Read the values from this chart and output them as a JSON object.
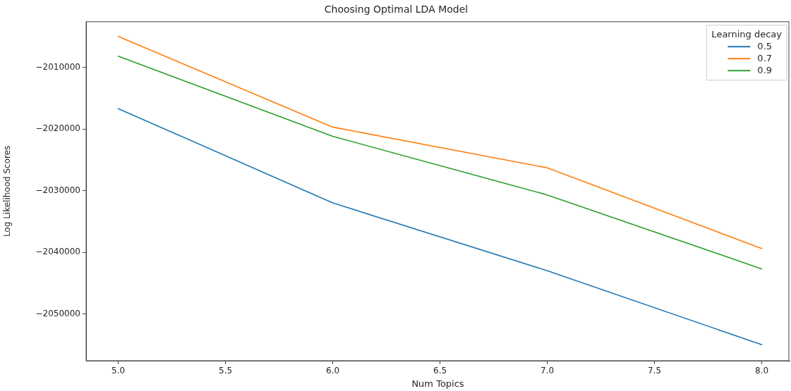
{
  "chart_data": {
    "type": "line",
    "title": "Choosing Optimal LDA Model",
    "xlabel": "Num Topics",
    "ylabel": "Log Likelihood Scores",
    "legend_title": "Learning decay",
    "x": [
      5.0,
      6.0,
      7.0,
      8.0
    ],
    "series": [
      {
        "name": "0.5",
        "color": "#1f77b4",
        "values": [
          -2016700,
          -2032000,
          -2043000,
          -2055000
        ]
      },
      {
        "name": "0.7",
        "color": "#ff7f0e",
        "values": [
          -2005000,
          -2019700,
          -2026300,
          -2039400
        ]
      },
      {
        "name": "0.9",
        "color": "#2ca02c",
        "values": [
          -2008200,
          -2021200,
          -2030700,
          -2042700
        ]
      }
    ],
    "xlim": [
      4.85,
      8.13
    ],
    "ylim": [
      -2057600,
      -2002600
    ],
    "xticks": [
      {
        "value": 5.0,
        "label": "5.0"
      },
      {
        "value": 5.5,
        "label": "5.5"
      },
      {
        "value": 6.0,
        "label": "6.0"
      },
      {
        "value": 6.5,
        "label": "6.5"
      },
      {
        "value": 7.0,
        "label": "7.0"
      },
      {
        "value": 7.5,
        "label": "7.5"
      },
      {
        "value": 8.0,
        "label": "8.0"
      }
    ],
    "yticks": [
      {
        "value": -2050000,
        "label": "−2050000"
      },
      {
        "value": -2040000,
        "label": "−2040000"
      },
      {
        "value": -2030000,
        "label": "−2030000"
      },
      {
        "value": -2020000,
        "label": "−2020000"
      },
      {
        "value": -2010000,
        "label": "−2010000"
      }
    ],
    "grid": false,
    "legend": "top right",
    "marker": "none",
    "line_style": "solid"
  }
}
